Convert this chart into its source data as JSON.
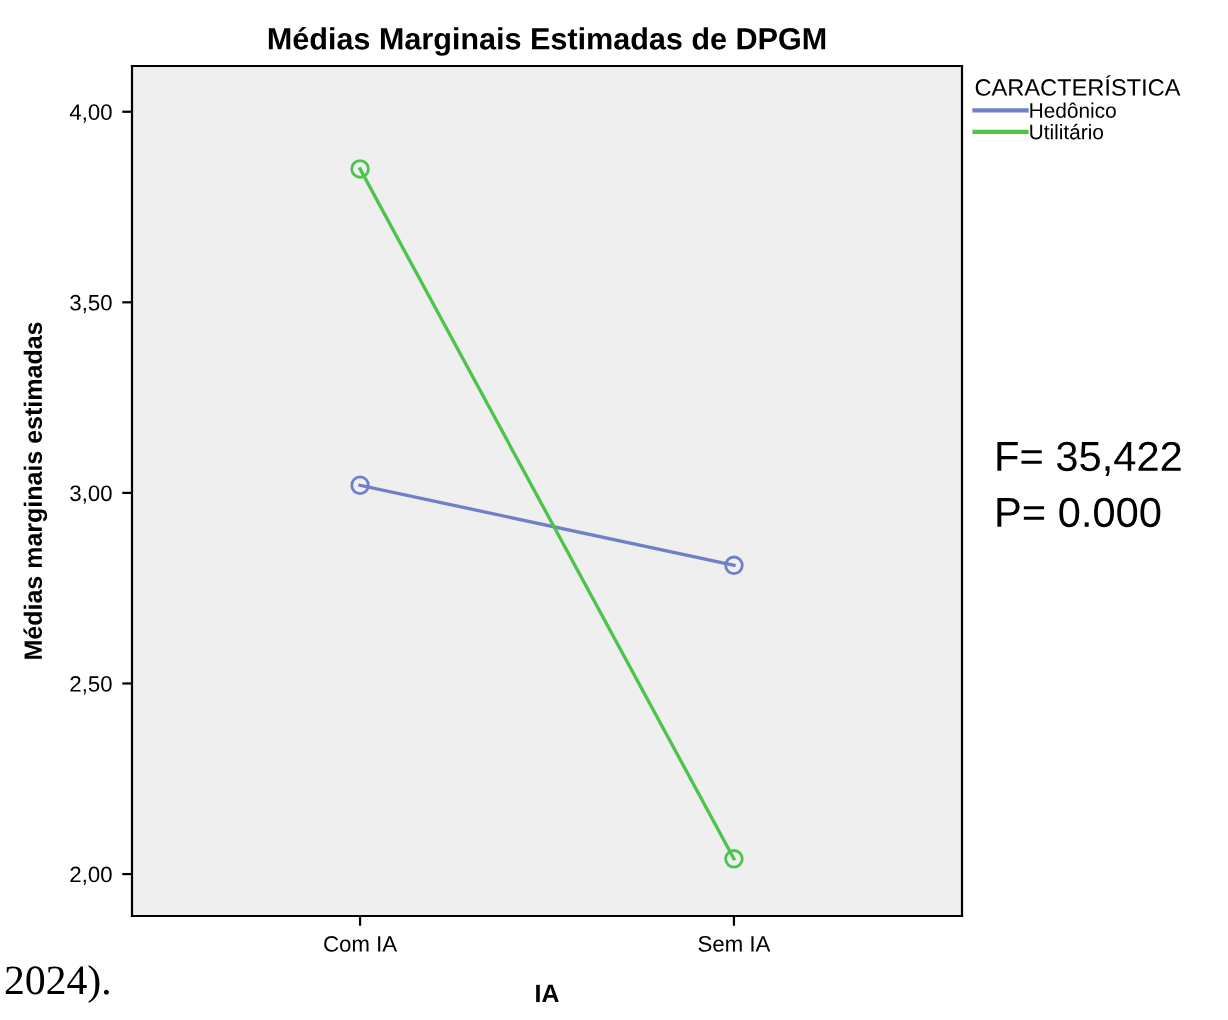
{
  "chart_data": {
    "type": "line",
    "title": "Médias Marginais Estimadas de DPGM",
    "xlabel": "IA",
    "ylabel": "Médias marginais estimadas",
    "legend_title": "CARACTERÍSTICA",
    "categories": [
      "Com IA",
      "Sem IA"
    ],
    "series": [
      {
        "name": "Hedônico",
        "color": "#6f7fc8",
        "values": [
          3.02,
          2.81
        ]
      },
      {
        "name": "Utilitário",
        "color": "#4cc44c",
        "values": [
          3.85,
          2.04
        ]
      }
    ],
    "ylim": [
      1.89,
      4.12
    ],
    "yticks": [
      {
        "value": 2.0,
        "label": "2,00"
      },
      {
        "value": 2.5,
        "label": "2,50"
      },
      {
        "value": 3.0,
        "label": "3,00"
      },
      {
        "value": 3.5,
        "label": "3,50"
      },
      {
        "value": 4.0,
        "label": "4,00"
      }
    ],
    "marker": "circle",
    "line_style": "solid",
    "legend": "top right",
    "grid": false,
    "annotations": [
      "F= 35,422",
      "P= 0.000",
      "2024)."
    ]
  }
}
